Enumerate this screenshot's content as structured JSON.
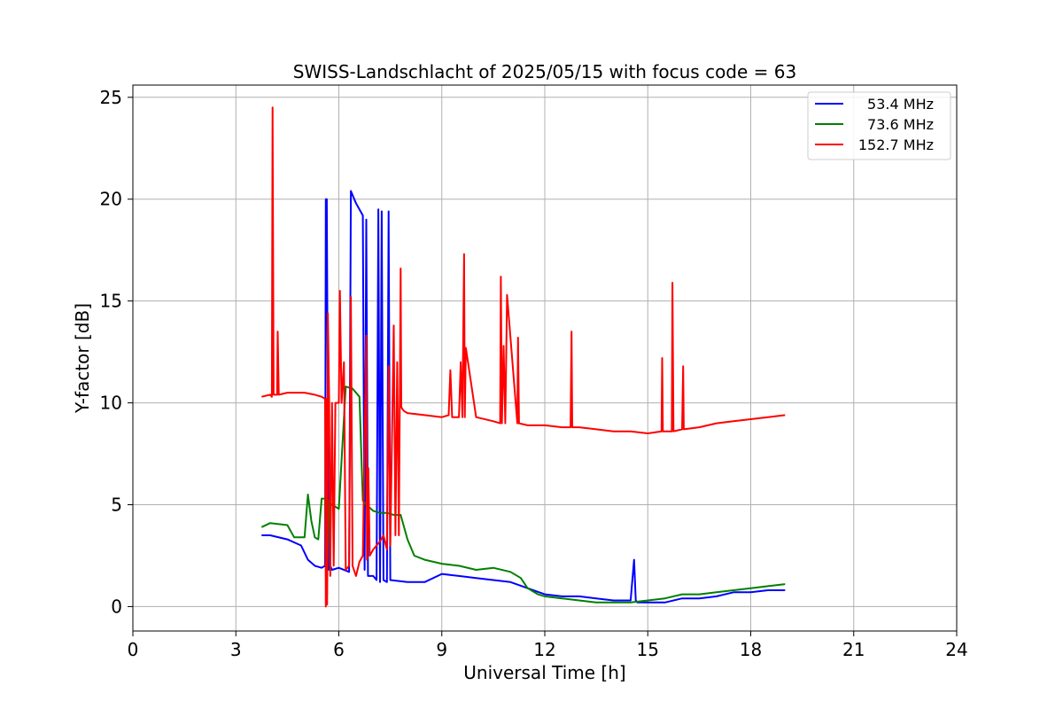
{
  "chart_data": {
    "type": "line",
    "title": "SWISS-Landschlacht of 2025/05/15 with focus code = 63",
    "xlabel": "Universal Time [h]",
    "ylabel": "Y-factor [dB]",
    "xlim": [
      0,
      24
    ],
    "ylim": [
      -1.2,
      25.6
    ],
    "xticks": [
      0,
      3,
      6,
      9,
      12,
      15,
      18,
      21,
      24
    ],
    "yticks": [
      0,
      5,
      10,
      15,
      20,
      25
    ],
    "grid": true,
    "legend_position": "top-right",
    "series": [
      {
        "name": "53.4 MHz",
        "color": "#0000ff",
        "x": [
          3.75,
          4.0,
          4.5,
          4.9,
          5.1,
          5.3,
          5.5,
          5.6,
          5.62,
          5.65,
          5.7,
          5.75,
          5.8,
          6.0,
          6.3,
          6.35,
          6.4,
          6.5,
          6.7,
          6.75,
          6.8,
          6.85,
          7.0,
          7.1,
          7.15,
          7.2,
          7.25,
          7.3,
          7.4,
          7.45,
          7.5,
          8.0,
          8.5,
          9.0,
          9.5,
          10.0,
          10.5,
          11.0,
          11.5,
          12.0,
          12.5,
          13.0,
          13.5,
          14.0,
          14.5,
          14.6,
          14.65,
          14.7,
          15.0,
          15.5,
          16.0,
          16.5,
          17.0,
          17.5,
          18.0,
          18.5,
          19.0
        ],
        "y": [
          3.5,
          3.5,
          3.3,
          3.0,
          2.3,
          2.0,
          1.9,
          2.0,
          20.0,
          20.0,
          1.8,
          2.0,
          1.8,
          1.9,
          1.7,
          20.4,
          20.2,
          19.8,
          19.2,
          1.8,
          19.0,
          1.5,
          1.5,
          1.3,
          19.5,
          1.2,
          19.4,
          1.3,
          1.2,
          19.4,
          1.3,
          1.2,
          1.2,
          1.6,
          1.5,
          1.4,
          1.3,
          1.2,
          0.9,
          0.6,
          0.5,
          0.5,
          0.4,
          0.3,
          0.3,
          2.3,
          0.3,
          0.2,
          0.2,
          0.2,
          0.4,
          0.4,
          0.5,
          0.7,
          0.7,
          0.8,
          0.8
        ]
      },
      {
        "name": "73.6 MHz",
        "color": "#008000",
        "x": [
          3.75,
          4.0,
          4.5,
          4.7,
          5.0,
          5.1,
          5.2,
          5.3,
          5.4,
          5.5,
          5.6,
          5.65,
          5.7,
          5.8,
          6.0,
          6.2,
          6.4,
          6.6,
          6.7,
          6.8,
          7.0,
          7.2,
          7.4,
          7.6,
          7.8,
          8.0,
          8.2,
          8.5,
          9.0,
          9.5,
          10.0,
          10.5,
          11.0,
          11.3,
          11.5,
          11.8,
          12.0,
          12.5,
          13.0,
          13.5,
          14.0,
          14.5,
          15.0,
          15.5,
          16.0,
          16.5,
          17.0,
          17.5,
          18.0,
          18.5,
          19.0
        ],
        "y": [
          3.9,
          4.1,
          4.0,
          3.4,
          3.4,
          5.5,
          4.2,
          3.4,
          3.3,
          5.3,
          5.3,
          0.2,
          5.2,
          5.0,
          4.8,
          10.8,
          10.7,
          10.3,
          5.2,
          5.0,
          4.7,
          4.6,
          4.6,
          4.5,
          4.5,
          3.3,
          2.5,
          2.3,
          2.1,
          2.0,
          1.8,
          1.9,
          1.7,
          1.4,
          0.9,
          0.6,
          0.5,
          0.4,
          0.3,
          0.2,
          0.2,
          0.2,
          0.3,
          0.4,
          0.6,
          0.6,
          0.7,
          0.8,
          0.9,
          1.0,
          1.1
        ]
      },
      {
        "name": "152.7 MHz",
        "color": "#ff0000",
        "x": [
          3.75,
          4.0,
          4.05,
          4.07,
          4.1,
          4.2,
          4.22,
          4.25,
          4.5,
          5.0,
          5.3,
          5.5,
          5.6,
          5.62,
          5.64,
          5.66,
          5.68,
          5.72,
          5.75,
          5.8,
          5.85,
          5.9,
          6.0,
          6.03,
          6.08,
          6.15,
          6.2,
          6.3,
          6.35,
          6.4,
          6.5,
          6.6,
          6.7,
          6.8,
          6.82,
          6.86,
          6.9,
          7.0,
          7.1,
          7.2,
          7.3,
          7.4,
          7.45,
          7.5,
          7.6,
          7.65,
          7.7,
          7.75,
          7.8,
          7.82,
          7.85,
          7.9,
          8.0,
          8.5,
          9.0,
          9.2,
          9.25,
          9.3,
          9.5,
          9.55,
          9.6,
          9.65,
          9.67,
          9.7,
          10.0,
          10.5,
          10.7,
          10.72,
          10.75,
          10.8,
          10.85,
          10.9,
          11.2,
          11.22,
          11.25,
          11.5,
          12.0,
          12.5,
          12.75,
          12.78,
          12.8,
          13.0,
          13.5,
          14.0,
          14.5,
          15.0,
          15.4,
          15.42,
          15.44,
          15.7,
          15.72,
          15.75,
          16.0,
          16.03,
          16.05,
          16.5,
          17.0,
          17.5,
          18.0,
          18.5,
          19.0
        ],
        "y": [
          10.3,
          10.4,
          10.3,
          24.5,
          10.4,
          10.4,
          13.5,
          10.4,
          10.5,
          10.5,
          10.4,
          10.3,
          10.2,
          0.0,
          10.2,
          0.1,
          14.4,
          10.1,
          1.5,
          10.0,
          2.0,
          10.0,
          10.0,
          15.5,
          10.0,
          12.0,
          1.8,
          2.0,
          15.2,
          2.0,
          1.5,
          2.2,
          2.5,
          13.3,
          2.3,
          6.8,
          2.5,
          2.8,
          3.0,
          3.2,
          3.5,
          2.8,
          11.8,
          3.0,
          13.8,
          3.5,
          12.0,
          3.5,
          16.6,
          9.8,
          9.7,
          9.6,
          9.5,
          9.4,
          9.3,
          9.4,
          11.6,
          9.3,
          9.3,
          12.0,
          9.3,
          17.3,
          9.3,
          12.7,
          9.3,
          9.1,
          9.0,
          16.2,
          9.0,
          12.8,
          9.0,
          15.3,
          9.0,
          13.2,
          9.0,
          8.9,
          8.9,
          8.8,
          8.8,
          13.5,
          8.8,
          8.8,
          8.7,
          8.6,
          8.6,
          8.5,
          8.6,
          12.2,
          8.6,
          8.6,
          15.9,
          8.6,
          8.7,
          11.8,
          8.7,
          8.8,
          9.0,
          9.1,
          9.2,
          9.3,
          9.4
        ]
      }
    ]
  }
}
